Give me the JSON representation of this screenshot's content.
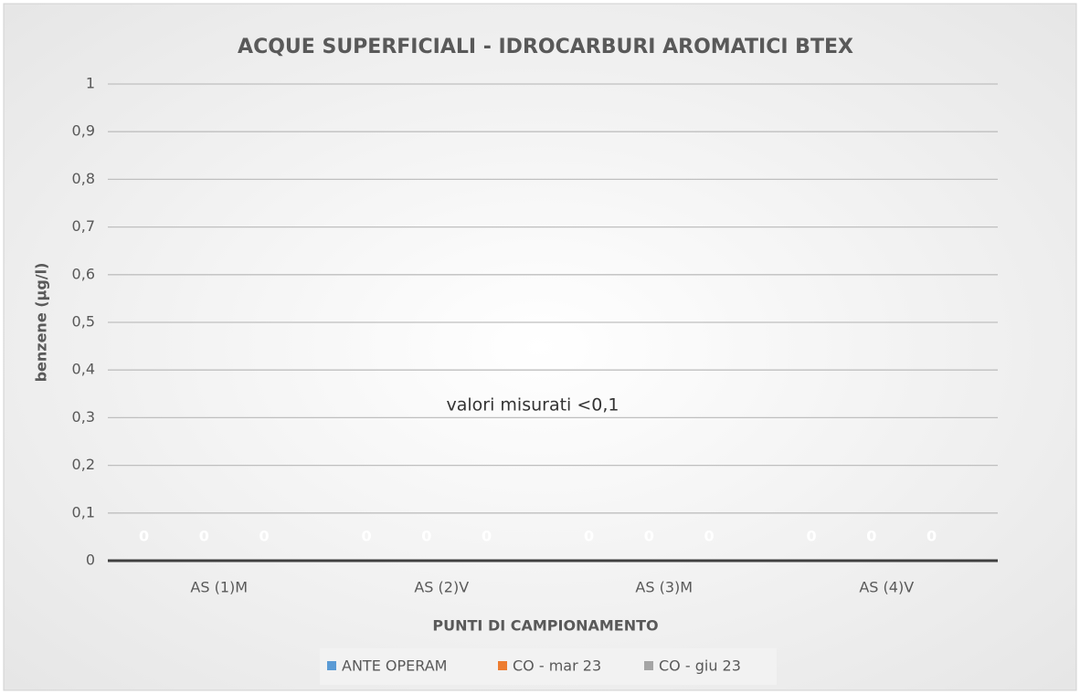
{
  "chart_data": {
    "type": "bar",
    "title": "ACQUE SUPERFICIALI - IDROCARBURI AROMATICI BTEX",
    "x_label": "PUNTI DI CAMPIONAMENTO",
    "y_label": "benzene (µg/l)",
    "annotation": "valori misurati <0,1",
    "categories": [
      "AS (1)M",
      "AS (2)V",
      "AS (3)M",
      "AS (4)V"
    ],
    "series": [
      {
        "name": "ANTE OPERAM",
        "color": "#5b9bd5",
        "values": [
          0,
          0,
          0,
          0
        ]
      },
      {
        "name": "CO - mar 23",
        "color": "#ed7d31",
        "values": [
          0,
          0,
          0,
          0
        ]
      },
      {
        "name": "CO - giu 23",
        "color": "#a5a5a5",
        "values": [
          0,
          0,
          0,
          0
        ]
      }
    ],
    "ylim": [
      0,
      1
    ],
    "yticks": [
      0,
      {
        "value": 0.1,
        "label": "0,1"
      },
      {
        "value": 0.2,
        "label": "0,2"
      },
      {
        "value": 0.3,
        "label": "0,3"
      },
      {
        "value": 0.4,
        "label": "0,4"
      },
      {
        "value": 0.5,
        "label": "0,5"
      },
      {
        "value": 0.6,
        "label": "0,6"
      },
      {
        "value": 0.7,
        "label": "0,7"
      },
      {
        "value": 0.8,
        "label": "0,8"
      },
      {
        "value": 0.9,
        "label": "0,9"
      },
      1
    ],
    "grid": true,
    "legend": "bottom"
  }
}
